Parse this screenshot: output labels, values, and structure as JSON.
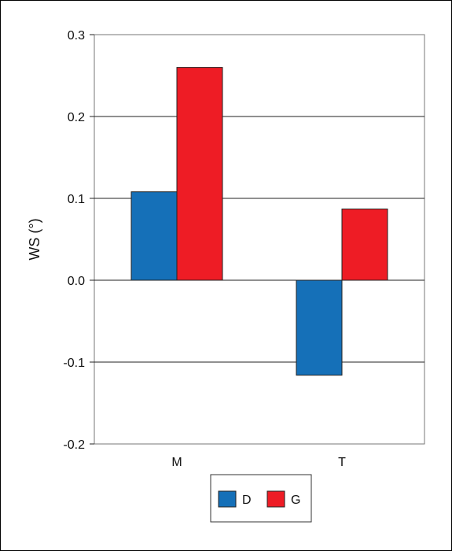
{
  "chart_data": {
    "type": "bar",
    "categories": [
      "M",
      "T"
    ],
    "series": [
      {
        "name": "D",
        "values": [
          0.108,
          -0.116
        ],
        "color": "#1570b8"
      },
      {
        "name": "G",
        "values": [
          0.26,
          0.087
        ],
        "color": "#ee1c25"
      }
    ],
    "ylabel": "WS (°)",
    "xlabel": "",
    "ylim": [
      -0.2,
      0.3
    ],
    "yticks": [
      "-0.2",
      "-0.1",
      "0.0",
      "0.1",
      "0.2",
      "0.3"
    ],
    "grid": "horizontal",
    "legend": "bottom-center"
  }
}
